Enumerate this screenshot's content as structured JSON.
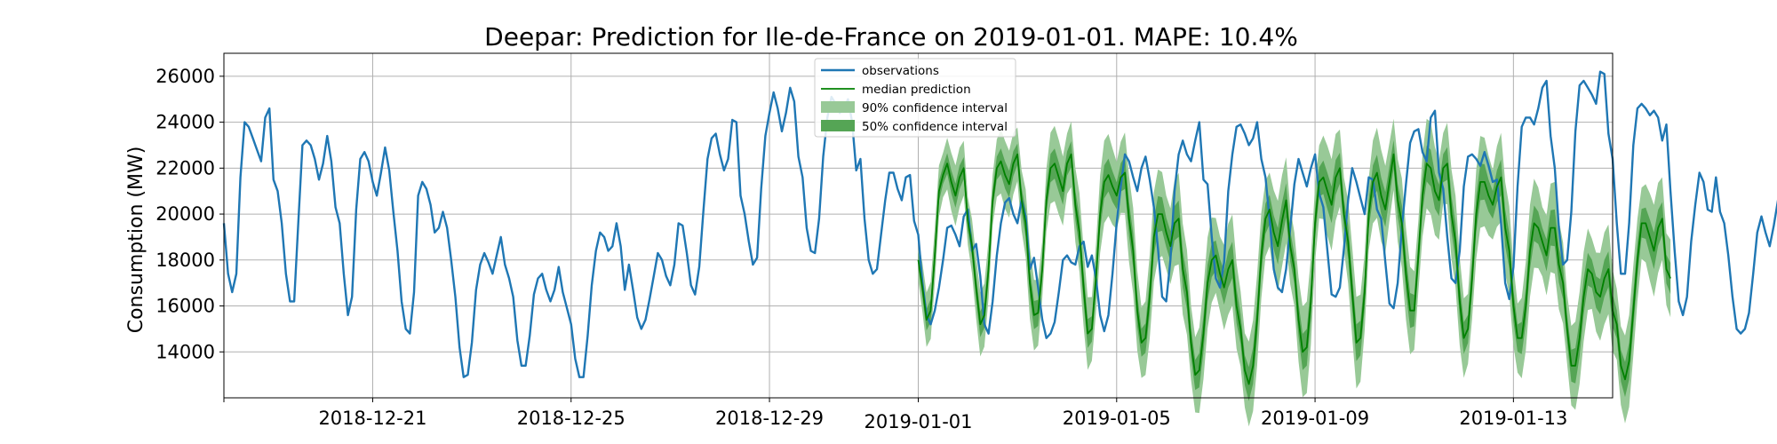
{
  "chart_data": {
    "type": "line",
    "title": "Deepar: Prediction for Ile-de-France on 2019-01-01. MAPE: 10.4%",
    "xlabel": "",
    "ylabel": "Consumption (MW)",
    "xlim": [
      "2018-12-18",
      "2019-01-15"
    ],
    "ylim": [
      12000,
      27000
    ],
    "grid": true,
    "legend_position": "top-center",
    "x_ticks": [
      "2018-12-21",
      "2018-12-25",
      "2018-12-29",
      "2019-01-01",
      "2019-01-05",
      "2019-01-09",
      "2019-01-13"
    ],
    "y_ticks": [
      14000,
      16000,
      18000,
      20000,
      22000,
      24000,
      26000
    ],
    "colors": {
      "observations": "#1f77b4",
      "median": "#008000",
      "ci90": "#98c997",
      "ci50": "#55a555"
    },
    "legend": {
      "observations": "observations",
      "median": "median prediction",
      "ci90": "90% confidence interval",
      "ci50": "50% confidence interval"
    },
    "observations": {
      "start": "2018-12-18",
      "step_hours": 2,
      "values": [
        19600,
        17400,
        16600,
        17400,
        21600,
        24000,
        23800,
        23300,
        22800,
        22300,
        24200,
        24600,
        21500,
        21000,
        19600,
        17400,
        16200,
        16200,
        19600,
        23000,
        23200,
        23000,
        22400,
        21500,
        22200,
        23400,
        22300,
        20300,
        19600,
        17400,
        15600,
        16400,
        20200,
        22400,
        22700,
        22300,
        21400,
        20800,
        21800,
        22900,
        21900,
        20100,
        18400,
        16200,
        15000,
        14800,
        16600,
        20800,
        21400,
        21100,
        20400,
        19200,
        19400,
        20100,
        19400,
        18000,
        16400,
        14200,
        12900,
        13000,
        14400,
        16700,
        17800,
        18300,
        17900,
        17400,
        18200,
        19000,
        17800,
        17200,
        16400,
        14500,
        13400,
        13400,
        14700,
        16500,
        17200,
        17400,
        16700,
        16200,
        16700,
        17700,
        16600,
        15900,
        15200,
        13700,
        12900,
        12900,
        14700,
        16900,
        18400,
        19200,
        19000,
        18400,
        18600,
        19600,
        18600,
        16700,
        17800,
        16700,
        15500,
        15000,
        15400,
        16300,
        17300,
        18300,
        18000,
        17300,
        16900,
        17800,
        19600,
        19500,
        18300,
        16900,
        16500,
        17700,
        20100,
        22400,
        23300,
        23500,
        22600,
        21900,
        22400,
        24100,
        24000,
        20800,
        20000,
        18800,
        17800,
        18100,
        21100,
        23400,
        24400,
        25300,
        24600,
        23600,
        24400,
        25500,
        24900,
        22500,
        21600,
        19400,
        18400,
        18300,
        19800,
        22500,
        24200,
        25100,
        24800,
        24400,
        24600,
        25000,
        24000,
        21900,
        22400,
        19800,
        18000,
        17400,
        17600,
        19100,
        20600,
        21800,
        21800,
        21100,
        20600,
        21600,
        21700,
        19700,
        19100,
        17000,
        15600,
        15200,
        15800,
        16800,
        18000,
        19400,
        19500,
        19100,
        18600,
        19900,
        20200,
        18400,
        18700,
        17300,
        15200,
        14800,
        16200,
        18200,
        19600,
        20500,
        20700,
        20000,
        19600,
        20600,
        19900,
        17600,
        18100,
        16800,
        15400,
        14600,
        14800,
        15300,
        16600,
        18000,
        18200,
        17900,
        17800,
        18600,
        18800,
        17700,
        18200,
        17200,
        15600,
        14900,
        15600,
        17400,
        19600,
        21200,
        22600,
        22300,
        21600,
        21000,
        22000,
        22500,
        21500,
        20300,
        18500,
        16400,
        16200,
        18000,
        21000,
        22600,
        23200,
        22600,
        22300,
        23200,
        24000,
        21500,
        21300,
        19000,
        17200,
        16800,
        17900,
        21000,
        22600,
        23800,
        23900,
        23500,
        23000,
        23300,
        24000,
        22400,
        21600,
        19800,
        17600,
        16800,
        16600,
        17600,
        19400,
        21300,
        22400,
        21800,
        21200,
        22000,
        22600,
        20900,
        20300,
        18400,
        16500,
        16400,
        16800,
        18500,
        20600,
        22000,
        21400,
        20700,
        20000,
        21600,
        21500,
        20200,
        19800,
        17900,
        16100,
        15900,
        17000,
        19400,
        21300,
        23100,
        23600,
        23700,
        22700,
        22300,
        24200,
        24500,
        21800,
        21100,
        19000,
        17200,
        17000,
        18400,
        21200,
        22500,
        22600,
        22400,
        22100,
        22700,
        22100,
        21400,
        21500,
        19600,
        17000,
        16300,
        17700,
        21200,
        23800,
        24200,
        24200,
        23900,
        24600,
        25500,
        25800,
        23400,
        22000,
        19400,
        17800,
        18000,
        20100,
        23600,
        25600,
        25800,
        25500,
        25200,
        24800,
        26200,
        26100,
        23500,
        22400,
        19600,
        17400,
        17400,
        19600,
        23000,
        24600,
        24800,
        24600,
        24300,
        24500,
        24200,
        23200,
        23900,
        21000,
        18400,
        16200,
        15600,
        16400,
        18800,
        20400,
        21800,
        21400,
        20200,
        20100,
        21600,
        20100,
        19600,
        18200,
        16400,
        15000,
        14800,
        15000,
        15700,
        17400,
        19200,
        19900,
        19200,
        18600,
        19500,
        20600,
        18700,
        19200,
        17300,
        15400,
        14800,
        15200,
        17800,
        22200,
        22600,
        22400,
        22500,
        22200,
        23000,
        23800,
        23900,
        21600,
        20400,
        20300
      ]
    },
    "prediction": {
      "start": "2019-01-01",
      "step_hours": 2,
      "median": [
        18000,
        16800,
        15400,
        15800,
        18200,
        21000,
        21700,
        22200,
        21400,
        20800,
        21600,
        22000,
        19700,
        18600,
        16800,
        15200,
        15600,
        17600,
        20600,
        22000,
        22300,
        21700,
        21300,
        22200,
        22600,
        20600,
        19600,
        17000,
        15600,
        15700,
        17600,
        20600,
        22000,
        22200,
        21600,
        21000,
        22200,
        22600,
        20400,
        19200,
        16800,
        14800,
        15000,
        17200,
        20000,
        21400,
        21700,
        21200,
        20800,
        21600,
        21800,
        19800,
        18400,
        15800,
        14400,
        14600,
        16400,
        19000,
        20000,
        20000,
        19200,
        18600,
        19600,
        19800,
        17600,
        16600,
        14400,
        13000,
        13200,
        14800,
        17000,
        18000,
        18200,
        17400,
        16800,
        17600,
        18000,
        16000,
        15000,
        13200,
        12600,
        13400,
        15400,
        18200,
        19800,
        20200,
        19200,
        18600,
        19700,
        20600,
        18600,
        17600,
        15400,
        14000,
        14200,
        16200,
        19600,
        21400,
        21600,
        21000,
        20400,
        21600,
        22000,
        20000,
        18800,
        16600,
        14400,
        14600,
        16600,
        20000,
        21400,
        21800,
        20800,
        20200,
        21400,
        22600,
        20600,
        19600,
        17400,
        15800,
        15800,
        18200,
        20800,
        22200,
        22000,
        21000,
        20600,
        22000,
        22200,
        20000,
        18800,
        16200,
        14600,
        15000,
        17200,
        20000,
        21400,
        21400,
        20800,
        20400,
        21200,
        21600,
        19400,
        18400,
        16000,
        14600,
        14600,
        16000,
        18400,
        19600,
        19400,
        18800,
        18200,
        19400,
        19400,
        17800,
        17000,
        15000,
        13400,
        13400,
        14600,
        16400,
        17600,
        17400,
        16600,
        16400,
        17200,
        17600,
        15800,
        15200,
        13400,
        12800,
        13600,
        15800,
        18000,
        19600,
        19600,
        19000,
        18400,
        19400,
        19800,
        17600,
        17200
      ]
    }
  }
}
